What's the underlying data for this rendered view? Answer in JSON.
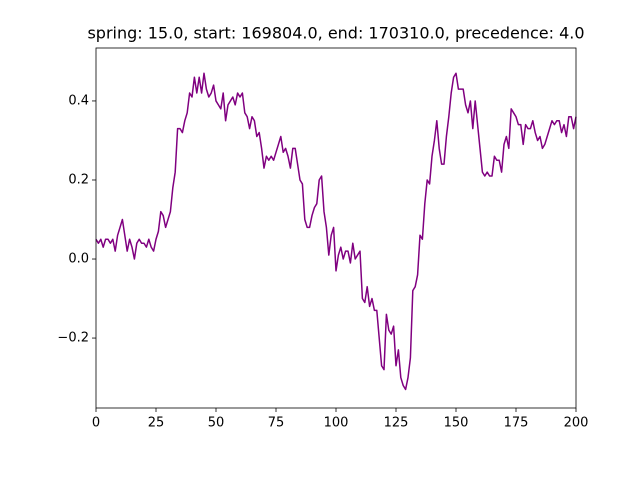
{
  "chart_data": {
    "type": "line",
    "title": "spring: 15.0, start: 169804.0, end: 170310.0, precedence: 4.0",
    "x": [
      0,
      1,
      2,
      3,
      4,
      5,
      6,
      7,
      8,
      9,
      10,
      11,
      12,
      13,
      14,
      15,
      16,
      17,
      18,
      19,
      20,
      21,
      22,
      23,
      24,
      25,
      26,
      27,
      28,
      29,
      30,
      31,
      32,
      33,
      34,
      35,
      36,
      37,
      38,
      39,
      40,
      41,
      42,
      43,
      44,
      45,
      46,
      47,
      48,
      49,
      50,
      51,
      52,
      53,
      54,
      55,
      56,
      57,
      58,
      59,
      60,
      61,
      62,
      63,
      64,
      65,
      66,
      67,
      68,
      69,
      70,
      71,
      72,
      73,
      74,
      75,
      76,
      77,
      78,
      79,
      80,
      81,
      82,
      83,
      84,
      85,
      86,
      87,
      88,
      89,
      90,
      91,
      92,
      93,
      94,
      95,
      96,
      97,
      98,
      99,
      100,
      101,
      102,
      103,
      104,
      105,
      106,
      107,
      108,
      109,
      110,
      111,
      112,
      113,
      114,
      115,
      116,
      117,
      118,
      119,
      120,
      121,
      122,
      123,
      124,
      125,
      126,
      127,
      128,
      129,
      130,
      131,
      132,
      133,
      134,
      135,
      136,
      137,
      138,
      139,
      140,
      141,
      142,
      143,
      144,
      145,
      146,
      147,
      148,
      149,
      150,
      151,
      152,
      153,
      154,
      155,
      156,
      157,
      158,
      159,
      160,
      161,
      162,
      163,
      164,
      165,
      166,
      167,
      168,
      169,
      170,
      171,
      172,
      173,
      174,
      175,
      176,
      177,
      178,
      179,
      180,
      181,
      182,
      183,
      184,
      185,
      186,
      187,
      188,
      189,
      190,
      191,
      192,
      193,
      194,
      195,
      196,
      197,
      198,
      199,
      200
    ],
    "series": [
      {
        "color": "#800080",
        "values": [
          0.05,
          0.04,
          0.05,
          0.03,
          0.05,
          0.05,
          0.04,
          0.05,
          0.02,
          0.06,
          0.08,
          0.1,
          0.06,
          0.02,
          0.05,
          0.03,
          0.0,
          0.04,
          0.05,
          0.04,
          0.04,
          0.03,
          0.05,
          0.03,
          0.02,
          0.05,
          0.07,
          0.12,
          0.11,
          0.08,
          0.1,
          0.12,
          0.18,
          0.22,
          0.33,
          0.33,
          0.32,
          0.35,
          0.37,
          0.42,
          0.41,
          0.46,
          0.42,
          0.46,
          0.42,
          0.47,
          0.43,
          0.41,
          0.42,
          0.44,
          0.4,
          0.39,
          0.38,
          0.42,
          0.35,
          0.39,
          0.4,
          0.41,
          0.39,
          0.42,
          0.41,
          0.42,
          0.37,
          0.36,
          0.33,
          0.36,
          0.35,
          0.31,
          0.32,
          0.28,
          0.23,
          0.26,
          0.25,
          0.26,
          0.25,
          0.27,
          0.29,
          0.31,
          0.27,
          0.28,
          0.26,
          0.23,
          0.28,
          0.28,
          0.24,
          0.2,
          0.19,
          0.1,
          0.08,
          0.08,
          0.11,
          0.13,
          0.14,
          0.2,
          0.21,
          0.12,
          0.08,
          0.01,
          0.06,
          0.08,
          -0.03,
          0.01,
          0.03,
          0.0,
          0.02,
          0.02,
          -0.01,
          0.04,
          0.0,
          0.01,
          0.02,
          -0.1,
          -0.11,
          -0.07,
          -0.12,
          -0.1,
          -0.13,
          -0.13,
          -0.2,
          -0.27,
          -0.28,
          -0.14,
          -0.18,
          -0.19,
          -0.17,
          -0.27,
          -0.23,
          -0.3,
          -0.32,
          -0.33,
          -0.3,
          -0.25,
          -0.08,
          -0.07,
          -0.04,
          0.06,
          0.05,
          0.14,
          0.2,
          0.19,
          0.26,
          0.3,
          0.35,
          0.28,
          0.24,
          0.24,
          0.31,
          0.36,
          0.42,
          0.46,
          0.47,
          0.43,
          0.43,
          0.43,
          0.39,
          0.37,
          0.4,
          0.33,
          0.4,
          0.34,
          0.28,
          0.22,
          0.21,
          0.22,
          0.21,
          0.21,
          0.26,
          0.25,
          0.25,
          0.22,
          0.29,
          0.31,
          0.28,
          0.38,
          0.37,
          0.36,
          0.34,
          0.34,
          0.29,
          0.34,
          0.33,
          0.33,
          0.35,
          0.32,
          0.3,
          0.31,
          0.28,
          0.29,
          0.31,
          0.33,
          0.35,
          0.34,
          0.35,
          0.35,
          0.32,
          0.34,
          0.31,
          0.36,
          0.36,
          0.33,
          0.36
        ]
      }
    ],
    "xlim": [
      0,
      200
    ],
    "xticks": [
      0,
      25,
      50,
      75,
      100,
      125,
      150,
      175,
      200
    ],
    "ylim": [
      -0.377,
      0.534
    ],
    "yticks": [
      {
        "value": -0.2,
        "label": "−0.2"
      },
      {
        "value": 0,
        "label": "0.0"
      },
      0.2,
      0.4
    ]
  }
}
